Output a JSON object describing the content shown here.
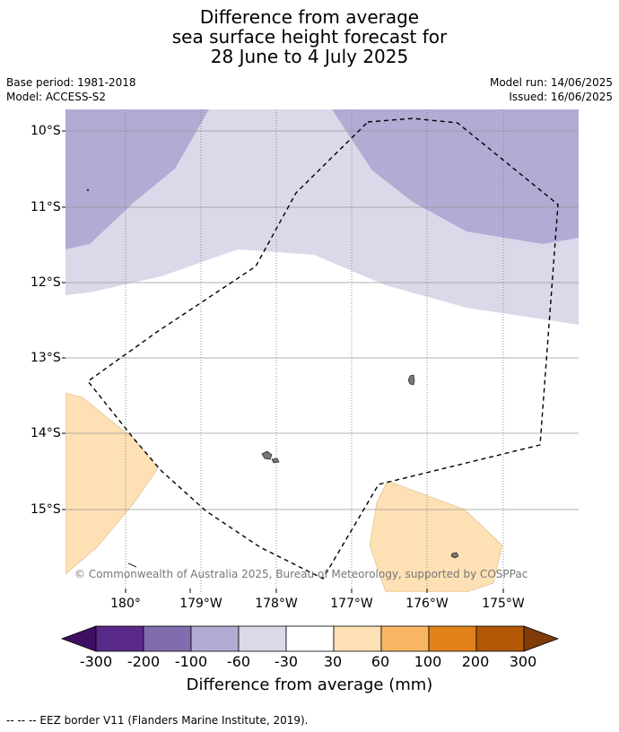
{
  "title": {
    "line1": "Difference from average",
    "line2": "sea surface height forecast for",
    "line3": "28 June to 4 July 2025"
  },
  "meta": {
    "base_period": "Base period: 1981-2018",
    "model": "Model: ACCESS-S2",
    "model_run": "Model run: 14/06/2025",
    "issued": "Issued: 16/06/2025"
  },
  "axes": {
    "lat_labels": [
      "10°S",
      "11°S",
      "12°S",
      "13°S",
      "14°S",
      "15°S"
    ],
    "lon_labels": [
      "180°",
      "179°W",
      "178°W",
      "177°W",
      "176°W",
      "175°W"
    ]
  },
  "copyright": "© Commonwealth of Australia 2025, Bureau of Meteorology, supported by COSPPac",
  "colorbar": {
    "title": "Difference from average (mm)",
    "tick_labels": [
      "-300",
      "-200",
      "-100",
      "-60",
      "-30",
      "30",
      "60",
      "100",
      "200",
      "300"
    ],
    "colors": [
      "#3f0f63",
      "#5a2a8a",
      "#7f6dae",
      "#b1acd4",
      "#d9d9ea",
      "#ffffff",
      "#fde0b4",
      "#f9b662",
      "#e2821a",
      "#b35806",
      "#7f3b08"
    ]
  },
  "footnote": "--  --  -- EEZ border V11 (Flanders Marine Institute, 2019)."
}
